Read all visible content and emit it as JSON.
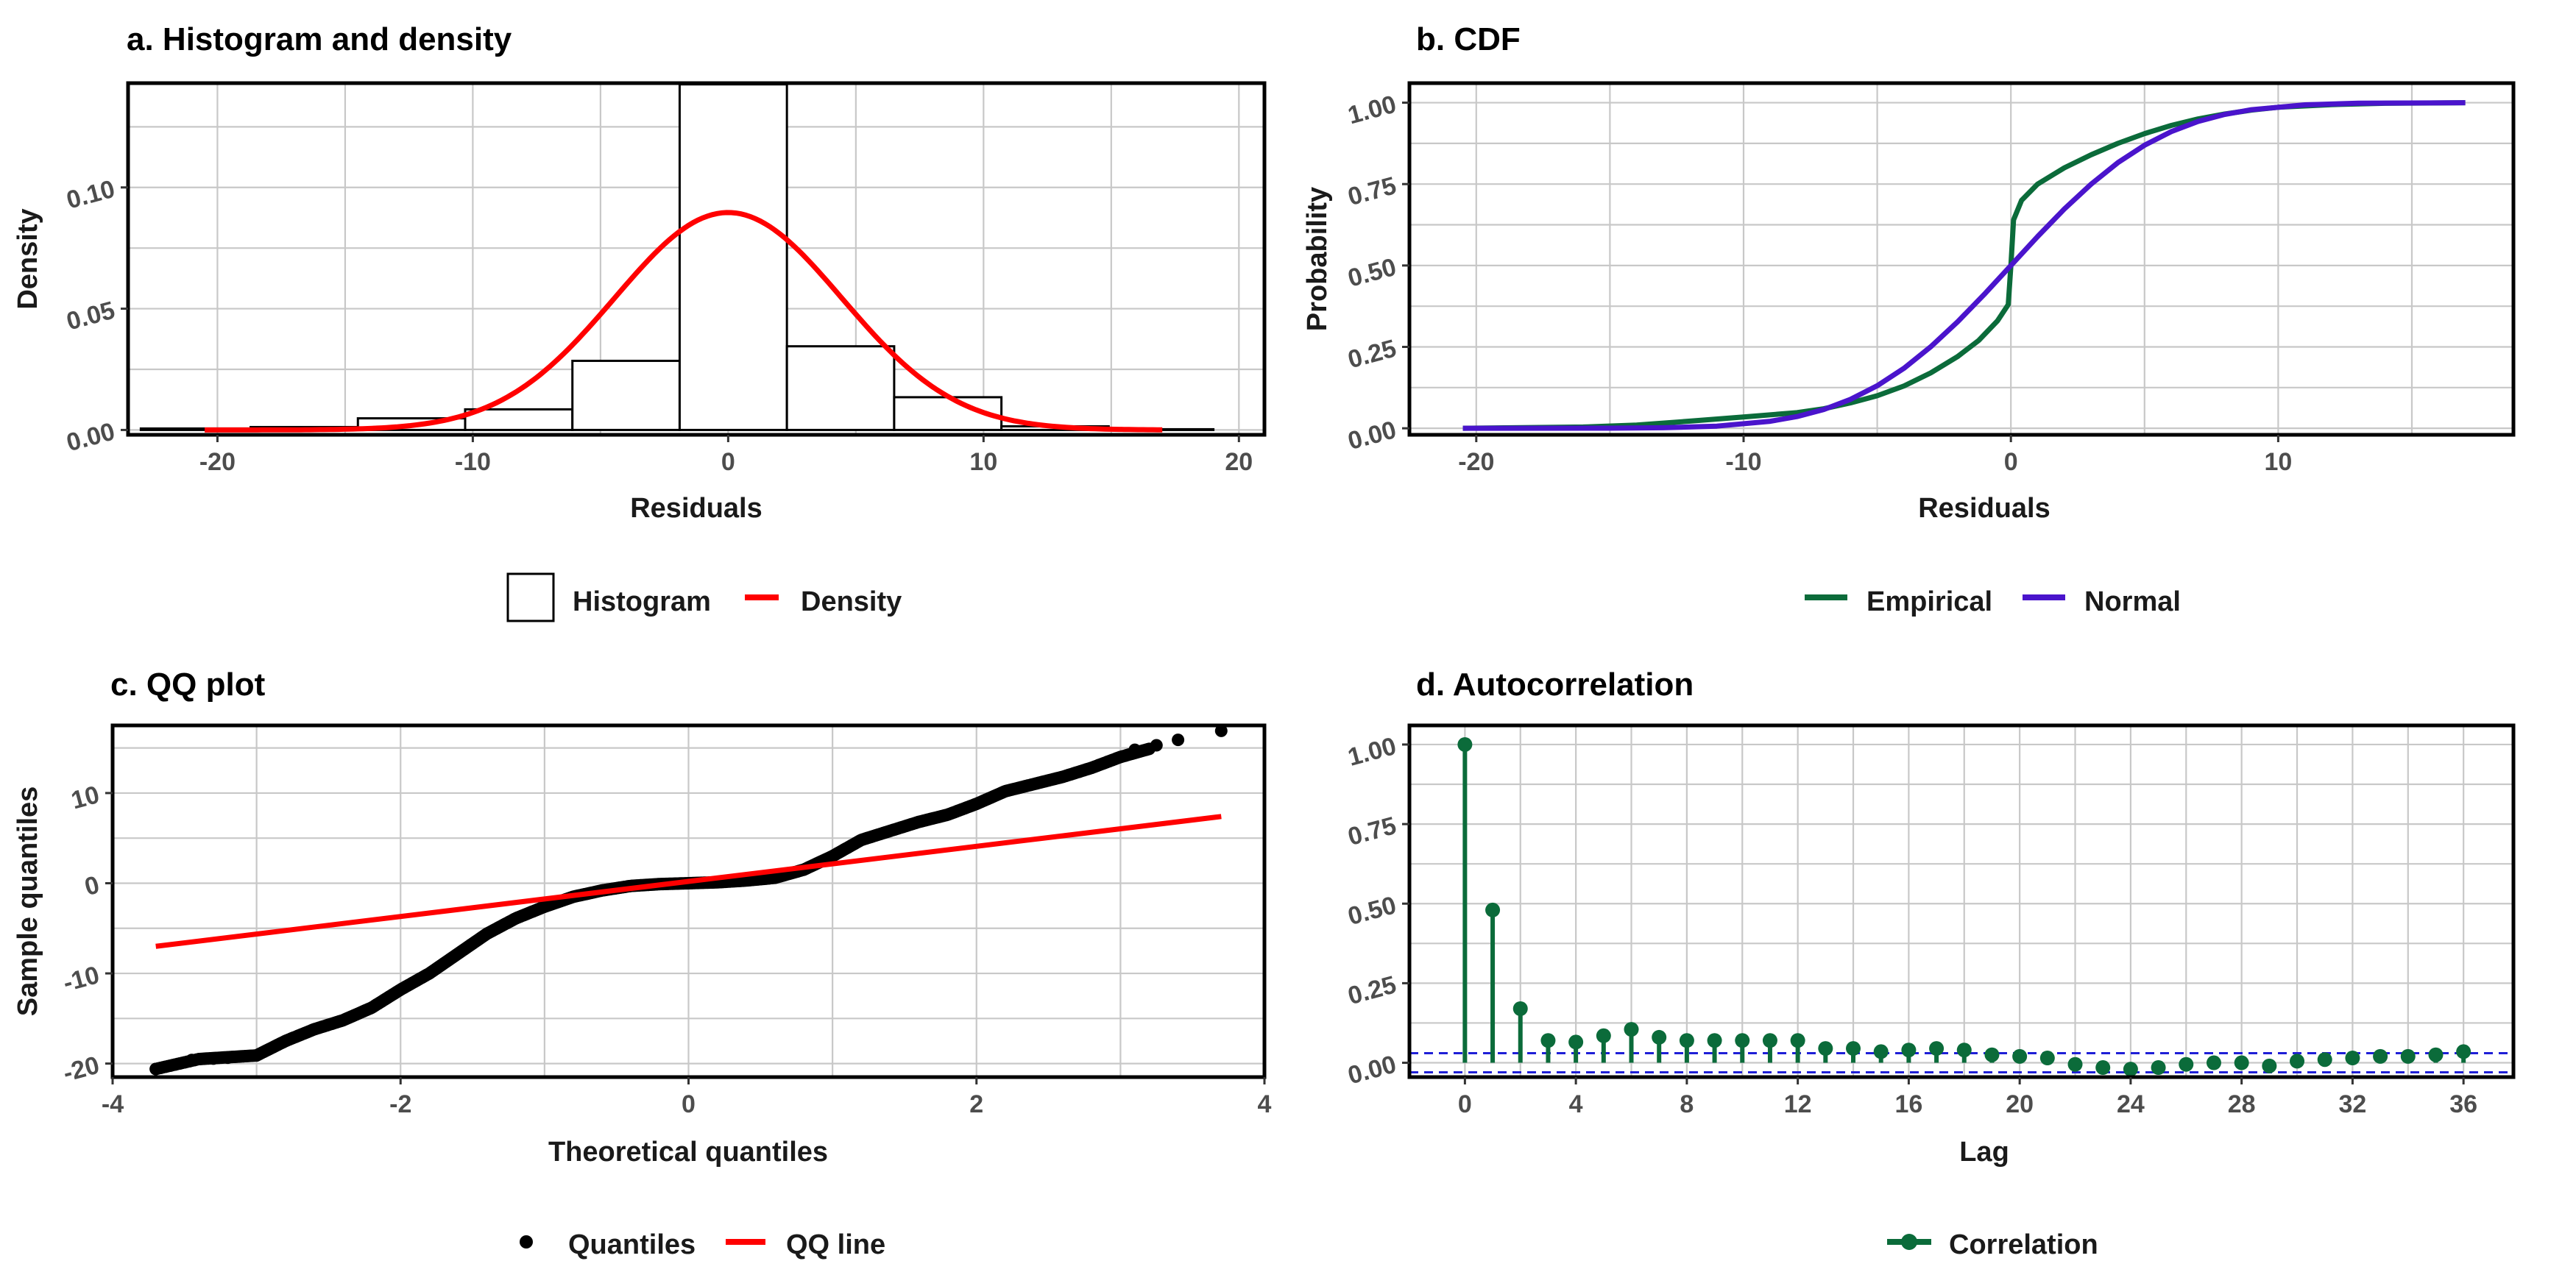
{
  "chart_data": [
    {
      "id": "a",
      "type": "histogram",
      "title": "a. Histogram and density",
      "xlabel": "Residuals",
      "ylabel": "Density",
      "xlim": [
        -23.5,
        21.0
      ],
      "ylim": [
        -0.002,
        0.143
      ],
      "xticks": [
        -20,
        -10,
        0,
        10,
        20
      ],
      "yticks": [
        0.0,
        0.05,
        0.1
      ],
      "ytick_labels": [
        "0.00",
        "0.05",
        "0.10"
      ],
      "bins": [
        {
          "x0": -23,
          "x1": -18.7,
          "value": 0.0006
        },
        {
          "x0": -18.7,
          "x1": -14.5,
          "value": 0.0012
        },
        {
          "x0": -14.5,
          "x1": -10.3,
          "value": 0.0048
        },
        {
          "x0": -10.3,
          "x1": -6.1,
          "value": 0.0085
        },
        {
          "x0": -6.1,
          "x1": -1.9,
          "value": 0.0285
        },
        {
          "x0": -1.9,
          "x1": 2.3,
          "value": 0.1425
        },
        {
          "x0": 2.3,
          "x1": 6.5,
          "value": 0.0345
        },
        {
          "x0": 6.5,
          "x1": 10.7,
          "value": 0.0135
        },
        {
          "x0": 10.7,
          "x1": 14.9,
          "value": 0.0015
        },
        {
          "x0": 14.9,
          "x1": 19.0,
          "value": 0.0003
        }
      ],
      "density": {
        "mean": 0,
        "sd": 4.45,
        "from": -20.5,
        "to": 17.0
      },
      "legend": [
        {
          "key": "histogram",
          "label": "Histogram",
          "color": "#000000"
        },
        {
          "key": "density",
          "label": "Density",
          "color": "#ff0000"
        }
      ]
    },
    {
      "id": "b",
      "type": "line",
      "title": "b. CDF",
      "xlabel": "Residuals",
      "ylabel": "Probability",
      "xlim": [
        -22.5,
        18.8
      ],
      "ylim": [
        -0.02,
        1.06
      ],
      "xticks": [
        -20,
        -10,
        0,
        10
      ],
      "yticks": [
        0.0,
        0.25,
        0.5,
        0.75,
        1.0
      ],
      "ytick_labels": [
        "0.00",
        "0.25",
        "0.50",
        "0.75",
        "1.00"
      ],
      "series": [
        {
          "name": "Empirical",
          "color": "#0b6b3a",
          "points": [
            [
              -20.5,
              0.0
            ],
            [
              -16,
              0.004
            ],
            [
              -14,
              0.01
            ],
            [
              -12,
              0.022
            ],
            [
              -10,
              0.035
            ],
            [
              -8,
              0.048
            ],
            [
              -7,
              0.06
            ],
            [
              -6,
              0.078
            ],
            [
              -5,
              0.1
            ],
            [
              -4,
              0.13
            ],
            [
              -3,
              0.17
            ],
            [
              -2,
              0.22
            ],
            [
              -1.2,
              0.27
            ],
            [
              -0.5,
              0.33
            ],
            [
              -0.1,
              0.38
            ],
            [
              0.0,
              0.5
            ],
            [
              0.1,
              0.64
            ],
            [
              0.4,
              0.7
            ],
            [
              1,
              0.75
            ],
            [
              2,
              0.8
            ],
            [
              3,
              0.84
            ],
            [
              4,
              0.875
            ],
            [
              5,
              0.905
            ],
            [
              6,
              0.93
            ],
            [
              7,
              0.95
            ],
            [
              8,
              0.965
            ],
            [
              9,
              0.977
            ],
            [
              10,
              0.986
            ],
            [
              12,
              0.994
            ],
            [
              14,
              0.998
            ],
            [
              17,
              1.0
            ]
          ]
        },
        {
          "name": "Normal",
          "color": "#4a14cc",
          "points": [
            [
              -20.5,
              0.0
            ],
            [
              -15,
              0.0004
            ],
            [
              -13,
              0.0017
            ],
            [
              -11,
              0.0067
            ],
            [
              -9,
              0.0216
            ],
            [
              -8,
              0.0361
            ],
            [
              -7,
              0.0578
            ],
            [
              -6,
              0.0888
            ],
            [
              -5,
              0.1306
            ],
            [
              -4,
              0.1843
            ],
            [
              -3,
              0.2502
            ],
            [
              -2,
              0.3266
            ],
            [
              -1,
              0.4111
            ],
            [
              0,
              0.5
            ],
            [
              1,
              0.5889
            ],
            [
              2,
              0.6734
            ],
            [
              3,
              0.7498
            ],
            [
              4,
              0.8157
            ],
            [
              5,
              0.8694
            ],
            [
              6,
              0.9112
            ],
            [
              7,
              0.9422
            ],
            [
              8,
              0.9639
            ],
            [
              9,
              0.9784
            ],
            [
              11,
              0.9933
            ],
            [
              13,
              0.9983
            ],
            [
              17,
              1.0
            ]
          ]
        }
      ],
      "legend": [
        {
          "key": "empirical",
          "label": "Empirical",
          "color": "#0b6b3a"
        },
        {
          "key": "normal",
          "label": "Normal",
          "color": "#4a14cc"
        }
      ]
    },
    {
      "id": "c",
      "type": "scatter",
      "title": "c. QQ plot",
      "xlabel": "Theoretical quantiles",
      "ylabel": "Sample quantiles",
      "xlim": [
        -4.0,
        4.0
      ],
      "ylim": [
        -21.5,
        17.5
      ],
      "xticks": [
        -4,
        -2,
        0,
        2,
        4
      ],
      "yticks": [
        -20,
        -10,
        0,
        10
      ],
      "qq_curve": [
        [
          -3.7,
          -20.6
        ],
        [
          -3.4,
          -19.5
        ],
        [
          -3.2,
          -19.3
        ],
        [
          -3.0,
          -19.1
        ],
        [
          -2.8,
          -17.5
        ],
        [
          -2.6,
          -16.2
        ],
        [
          -2.4,
          -15.2
        ],
        [
          -2.2,
          -13.8
        ],
        [
          -2.0,
          -11.8
        ],
        [
          -1.8,
          -10.0
        ],
        [
          -1.6,
          -7.8
        ],
        [
          -1.4,
          -5.6
        ],
        [
          -1.2,
          -3.9
        ],
        [
          -1.0,
          -2.6
        ],
        [
          -0.8,
          -1.5
        ],
        [
          -0.6,
          -0.8
        ],
        [
          -0.4,
          -0.3
        ],
        [
          -0.2,
          -0.1
        ],
        [
          0.0,
          0.0
        ],
        [
          0.2,
          0.1
        ],
        [
          0.4,
          0.3
        ],
        [
          0.6,
          0.6
        ],
        [
          0.8,
          1.5
        ],
        [
          1.0,
          3.0
        ],
        [
          1.2,
          4.8
        ],
        [
          1.4,
          5.8
        ],
        [
          1.6,
          6.8
        ],
        [
          1.8,
          7.6
        ],
        [
          2.0,
          8.8
        ],
        [
          2.2,
          10.2
        ],
        [
          2.4,
          11.0
        ],
        [
          2.6,
          11.8
        ],
        [
          2.8,
          12.8
        ],
        [
          3.0,
          14.0
        ],
        [
          3.2,
          14.9
        ]
      ],
      "outlier_points": [
        [
          -3.7,
          -20.6
        ],
        [
          -3.45,
          -19.6
        ],
        [
          -3.3,
          -19.45
        ],
        [
          -3.2,
          -19.35
        ],
        [
          3.1,
          14.8
        ],
        [
          3.25,
          15.3
        ],
        [
          3.4,
          15.9
        ],
        [
          3.7,
          16.9
        ]
      ],
      "qq_line": {
        "x": [
          -3.7,
          3.7
        ],
        "y": [
          -7.0,
          7.4
        ]
      },
      "legend": [
        {
          "key": "quantiles",
          "label": "Quantiles",
          "color": "#000000"
        },
        {
          "key": "qqline",
          "label": "QQ line",
          "color": "#ff0000"
        }
      ]
    },
    {
      "id": "d",
      "type": "stem",
      "title": "d. Autocorrelation",
      "xlabel": "Lag",
      "ylabel": "",
      "xlim": [
        -2.0,
        37.8
      ],
      "ylim": [
        -0.045,
        1.06
      ],
      "xticks": [
        0,
        4,
        8,
        12,
        16,
        20,
        24,
        28,
        32,
        36
      ],
      "yticks": [
        0.0,
        0.25,
        0.5,
        0.75,
        1.0
      ],
      "ytick_labels": [
        "0.00",
        "0.25",
        "0.50",
        "0.75",
        "1.00"
      ],
      "lags": [
        0,
        1,
        2,
        3,
        4,
        5,
        6,
        7,
        8,
        9,
        10,
        11,
        12,
        13,
        14,
        15,
        16,
        17,
        18,
        19,
        20,
        21,
        22,
        23,
        24,
        25,
        26,
        27,
        28,
        29,
        30,
        31,
        32,
        33,
        34,
        35,
        36
      ],
      "values": [
        1.0,
        0.48,
        0.17,
        0.07,
        0.065,
        0.085,
        0.105,
        0.08,
        0.07,
        0.07,
        0.07,
        0.07,
        0.07,
        0.045,
        0.045,
        0.035,
        0.04,
        0.045,
        0.04,
        0.025,
        0.02,
        0.015,
        -0.005,
        -0.015,
        -0.02,
        -0.015,
        -0.005,
        0.0,
        0.0,
        -0.01,
        0.005,
        0.01,
        0.015,
        0.02,
        0.02,
        0.025,
        0.035
      ],
      "confidence_band": [
        0.03,
        -0.03
      ],
      "series_color": "#0b6b3a",
      "band_color": "#1f1fd6",
      "legend": [
        {
          "key": "correlation",
          "label": "Correlation",
          "color": "#0b6b3a"
        }
      ]
    }
  ]
}
